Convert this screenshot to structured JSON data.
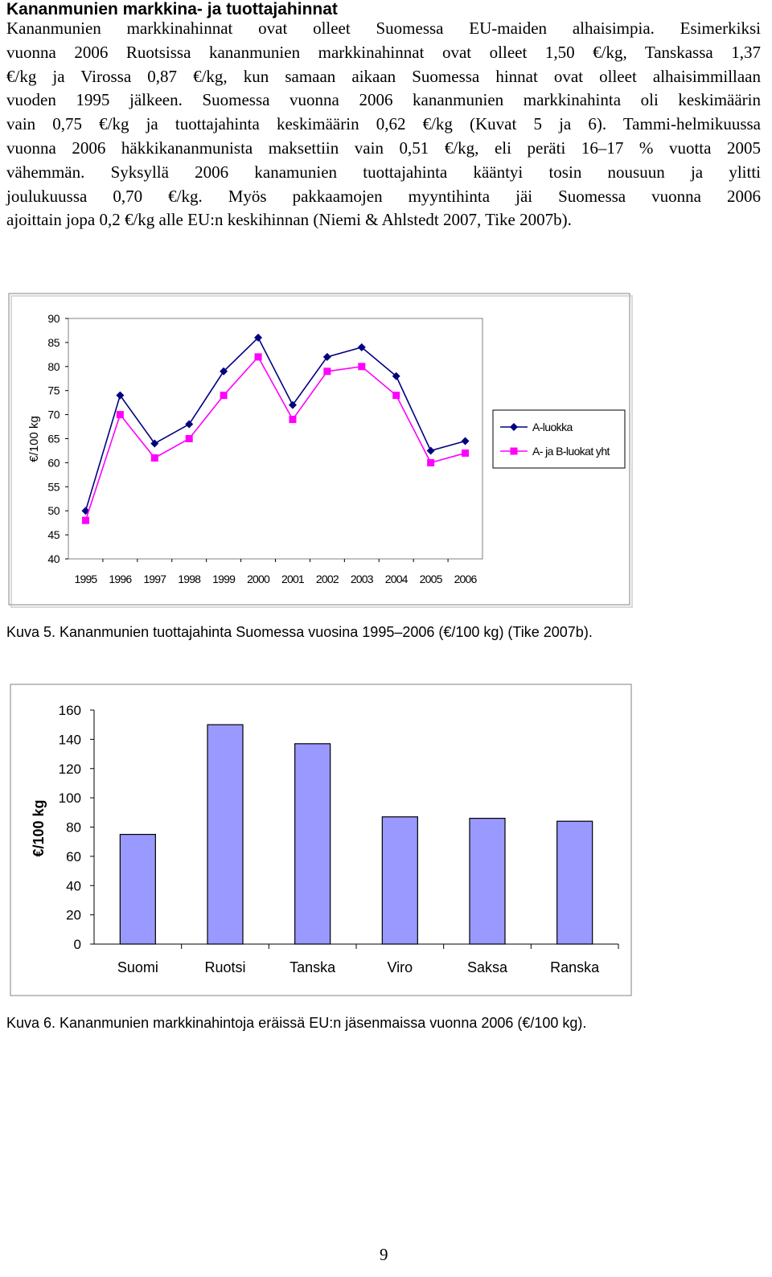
{
  "heading": "Kananmunien markkina- ja tuottajahinnat",
  "paragraph_lines": [
    "Kananmunien markkinahinnat ovat olleet Suomessa EU-maiden alhaisimpia. Esimerkiksi",
    "vuonna 2006 Ruotsissa kananmunien markkinahinnat ovat olleet 1,50 €/kg, Tanskassa 1,37",
    "€/kg ja Virossa 0,87 €/kg, kun samaan aikaan Suomessa hinnat ovat olleet alhaisimmillaan",
    "vuoden 1995 jälkeen. Suomessa vuonna 2006 kananmunien markkinahinta oli keskimäärin",
    "vain 0,75 €/kg ja tuottajahinta keskimäärin 0,62 €/kg (Kuvat 5 ja 6). Tammi-helmikuussa",
    "vuonna 2006 häkkikananmunista maksettiin vain 0,51 €/kg, eli peräti 16–17 % vuotta 2005",
    "vähemmän. Syksyllä 2006 kanamunien tuottajahinta kääntyi tosin nousuun ja ylitti",
    "joulukuussa 0,70 €/kg. Myös pakkaamojen myyntihinta jäi Suomessa vuonna 2006",
    "ajoittain jopa 0,2 €/kg alle EU:n keskihinnan (Niemi & Ahlstedt 2007, Tike 2007b)."
  ],
  "caption1": "Kuva 5. Kananmunien tuottajahinta Suomessa vuosina 1995–2006 (€/100 kg) (Tike 2007b).",
  "caption2": "Kuva 6. Kananmunien markkinahintoja eräissä EU:n jäsenmaissa vuonna 2006 (€/100 kg).",
  "page_number": "9",
  "chart_data": [
    {
      "type": "line",
      "title": "",
      "xlabel": "",
      "ylabel": "€/100 kg",
      "x": [
        "1995",
        "1996",
        "1997",
        "1998",
        "1999",
        "2000",
        "2001",
        "2002",
        "2003",
        "2004",
        "2005",
        "2006"
      ],
      "ylim": [
        40,
        90
      ],
      "yticks": [
        40,
        45,
        50,
        55,
        60,
        65,
        70,
        75,
        80,
        85,
        90
      ],
      "legend": "right",
      "grid": false,
      "series": [
        {
          "name": "A-luokka",
          "color": "#000080",
          "marker": "diamond",
          "values": [
            50,
            74,
            64,
            68,
            79,
            86,
            72,
            82,
            84,
            78,
            62.5,
            64.5
          ]
        },
        {
          "name": "A- ja B-luokat yht",
          "color": "#ff00ff",
          "marker": "square",
          "values": [
            48,
            70,
            61,
            65,
            74,
            82,
            69,
            79,
            80,
            74,
            60,
            62
          ]
        }
      ]
    },
    {
      "type": "bar",
      "title": "",
      "xlabel": "",
      "ylabel": "€/100 kg",
      "categories": [
        "Suomi",
        "Ruotsi",
        "Tanska",
        "Viro",
        "Saksa",
        "Ranska"
      ],
      "values": [
        75,
        150,
        137,
        87,
        86,
        84
      ],
      "ylim": [
        0,
        160
      ],
      "yticks": [
        0,
        20,
        40,
        60,
        80,
        100,
        120,
        140,
        160
      ],
      "bar_color": "#9999ff",
      "grid": false
    }
  ]
}
